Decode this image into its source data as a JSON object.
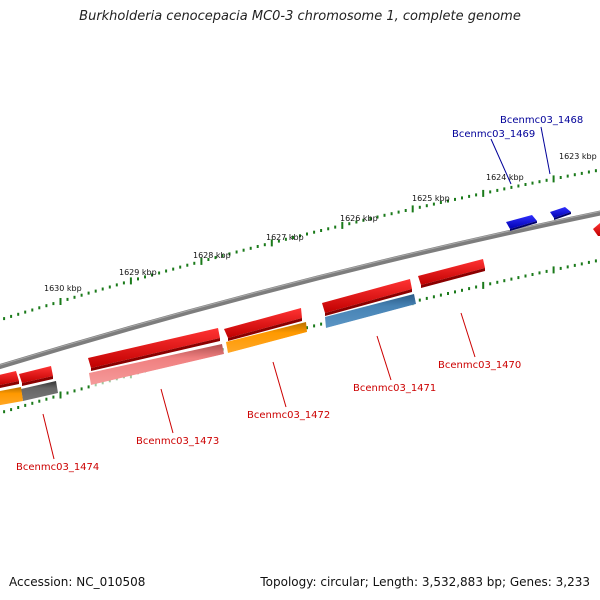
{
  "title": "Burkholderia cenocepacia MC0-3 chromosome 1, complete genome",
  "footer": {
    "accession": "Accession: NC_010508",
    "topology": "Topology: circular; Length: 3,532,883 bp; Genes: 3,233"
  },
  "scale_labels": [
    "1623 kbp",
    "1624 kbp",
    "1625 kbp",
    "1626 kbp",
    "1627 kbp",
    "1628 kbp",
    "1629 kbp",
    "1630 kbp"
  ],
  "gene_labels": [
    {
      "text": "Bcenmc03_1468",
      "color": "#000099"
    },
    {
      "text": "Bcenmc03_1469",
      "color": "#000099"
    },
    {
      "text": "Bcenmc03_1470",
      "color": "#cc0000"
    },
    {
      "text": "Bcenmc03_1471",
      "color": "#cc0000"
    },
    {
      "text": "Bcenmc03_1472",
      "color": "#cc0000"
    },
    {
      "text": "Bcenmc03_1473",
      "color": "#cc0000"
    },
    {
      "text": "Bcenmc03_1474",
      "color": "#cc0000"
    }
  ],
  "colors": {
    "backbone": "#808080",
    "ticks": "#1a7a1a",
    "red_gene": "#ee1111",
    "blue_gene": "#1111ee",
    "orange_feature": "#ff9900",
    "pink_feature": "#f08080",
    "steelblue_feature": "#4682b4",
    "gray_feature": "#666666"
  }
}
